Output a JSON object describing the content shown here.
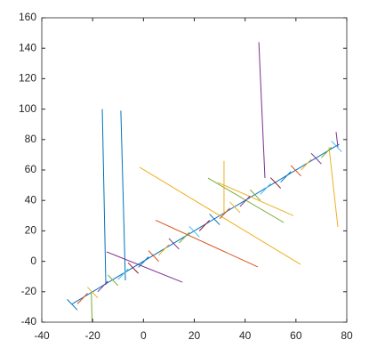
{
  "chart_data": {
    "type": "line",
    "xlim": [
      -40,
      80
    ],
    "xticks": [
      -40,
      -20,
      0,
      20,
      40,
      60,
      80
    ],
    "ylim": [
      -40,
      160
    ],
    "yticks": [
      -40,
      -20,
      0,
      20,
      40,
      60,
      80,
      100,
      120,
      140,
      160
    ],
    "box": true,
    "grid": false,
    "series": [
      {
        "color": "#0072bd",
        "x": [
          -28,
          77
        ],
        "values": [
          -28,
          77
        ]
      },
      {
        "color": "#0072bd",
        "x": [
          -16.2,
          -14.8
        ],
        "values": [
          100,
          -15.4
        ]
      },
      {
        "color": "#0072bd",
        "x": [
          -8.9,
          -7.1
        ],
        "values": [
          99,
          -12.5
        ]
      },
      {
        "color": "#7e2f8e",
        "x": [
          45.4,
          47.8
        ],
        "values": [
          144,
          54.7
        ]
      },
      {
        "color": "#edb120",
        "x": [
          -1.5,
          61.8
        ],
        "values": [
          61.8,
          -2
        ]
      },
      {
        "color": "#edb120",
        "x": [
          29.3,
          59
        ],
        "values": [
          51.8,
          30
        ]
      },
      {
        "color": "#77ac30",
        "x": [
          25.4,
          55.2
        ],
        "values": [
          54.7,
          25.5
        ]
      },
      {
        "color": "#d95319",
        "x": [
          4.8,
          45
        ],
        "values": [
          27,
          -3.7
        ]
      },
      {
        "color": "#7e2f8e",
        "x": [
          -14.5,
          15.3
        ],
        "values": [
          6.2,
          -13.7
        ]
      },
      {
        "color": "#edb120",
        "x": [
          73,
          76.5
        ],
        "values": [
          75,
          22.6
        ]
      },
      {
        "color": "#7e2f8e",
        "x": [
          75.8,
          76.5
        ],
        "values": [
          85,
          75
        ]
      },
      {
        "color": "#edb120",
        "x": [
          31.7,
          31.7
        ],
        "values": [
          66,
          31
        ]
      },
      {
        "color": "#77ac30",
        "x": [
          -20.5,
          -20.2
        ],
        "values": [
          -21,
          -40
        ]
      },
      {
        "color": "#0072bd",
        "x": [
          -30,
          -26
        ],
        "values": [
          -25,
          -32
        ]
      },
      {
        "color": "#d95319",
        "x": [
          -26,
          -22
        ],
        "values": [
          -28,
          -21
        ]
      },
      {
        "color": "#edb120",
        "x": [
          -22,
          -18
        ],
        "values": [
          -17,
          -24
        ]
      },
      {
        "color": "#7e2f8e",
        "x": [
          -18,
          -14
        ],
        "values": [
          -20,
          -13
        ]
      },
      {
        "color": "#77ac30",
        "x": [
          -14,
          -10
        ],
        "values": [
          -9,
          -16
        ]
      },
      {
        "color": "#4dbeee",
        "x": [
          -10,
          -6
        ],
        "values": [
          -12,
          -5
        ]
      },
      {
        "color": "#a2142f",
        "x": [
          -6,
          -2
        ],
        "values": [
          -1,
          -8
        ]
      },
      {
        "color": "#0072bd",
        "x": [
          -2,
          2
        ],
        "values": [
          -4,
          3
        ]
      },
      {
        "color": "#d95319",
        "x": [
          2,
          6
        ],
        "values": [
          7,
          0
        ]
      },
      {
        "color": "#edb120",
        "x": [
          6,
          10
        ],
        "values": [
          4,
          11
        ]
      },
      {
        "color": "#7e2f8e",
        "x": [
          10,
          14
        ],
        "values": [
          15,
          8
        ]
      },
      {
        "color": "#77ac30",
        "x": [
          14,
          18
        ],
        "values": [
          12,
          19
        ]
      },
      {
        "color": "#4dbeee",
        "x": [
          18,
          22
        ],
        "values": [
          23,
          16
        ]
      },
      {
        "color": "#a2142f",
        "x": [
          22,
          26
        ],
        "values": [
          20,
          27
        ]
      },
      {
        "color": "#0072bd",
        "x": [
          26,
          30
        ],
        "values": [
          31,
          24
        ]
      },
      {
        "color": "#d95319",
        "x": [
          30,
          34
        ],
        "values": [
          28,
          35
        ]
      },
      {
        "color": "#edb120",
        "x": [
          34,
          38
        ],
        "values": [
          39,
          32
        ]
      },
      {
        "color": "#7e2f8e",
        "x": [
          38,
          42
        ],
        "values": [
          36,
          43
        ]
      },
      {
        "color": "#77ac30",
        "x": [
          42,
          46
        ],
        "values": [
          47,
          40
        ]
      },
      {
        "color": "#4dbeee",
        "x": [
          46,
          50
        ],
        "values": [
          44,
          51
        ]
      },
      {
        "color": "#a2142f",
        "x": [
          50,
          54
        ],
        "values": [
          55,
          48
        ]
      },
      {
        "color": "#0072bd",
        "x": [
          54,
          58
        ],
        "values": [
          52,
          59
        ]
      },
      {
        "color": "#d95319",
        "x": [
          58,
          62
        ],
        "values": [
          63,
          56
        ]
      },
      {
        "color": "#edb120",
        "x": [
          62,
          66
        ],
        "values": [
          60,
          67
        ]
      },
      {
        "color": "#7e2f8e",
        "x": [
          66,
          70
        ],
        "values": [
          71,
          64
        ]
      },
      {
        "color": "#77ac30",
        "x": [
          70,
          74
        ],
        "values": [
          68,
          75
        ]
      },
      {
        "color": "#4dbeee",
        "x": [
          74,
          78
        ],
        "values": [
          79,
          72
        ]
      }
    ]
  }
}
